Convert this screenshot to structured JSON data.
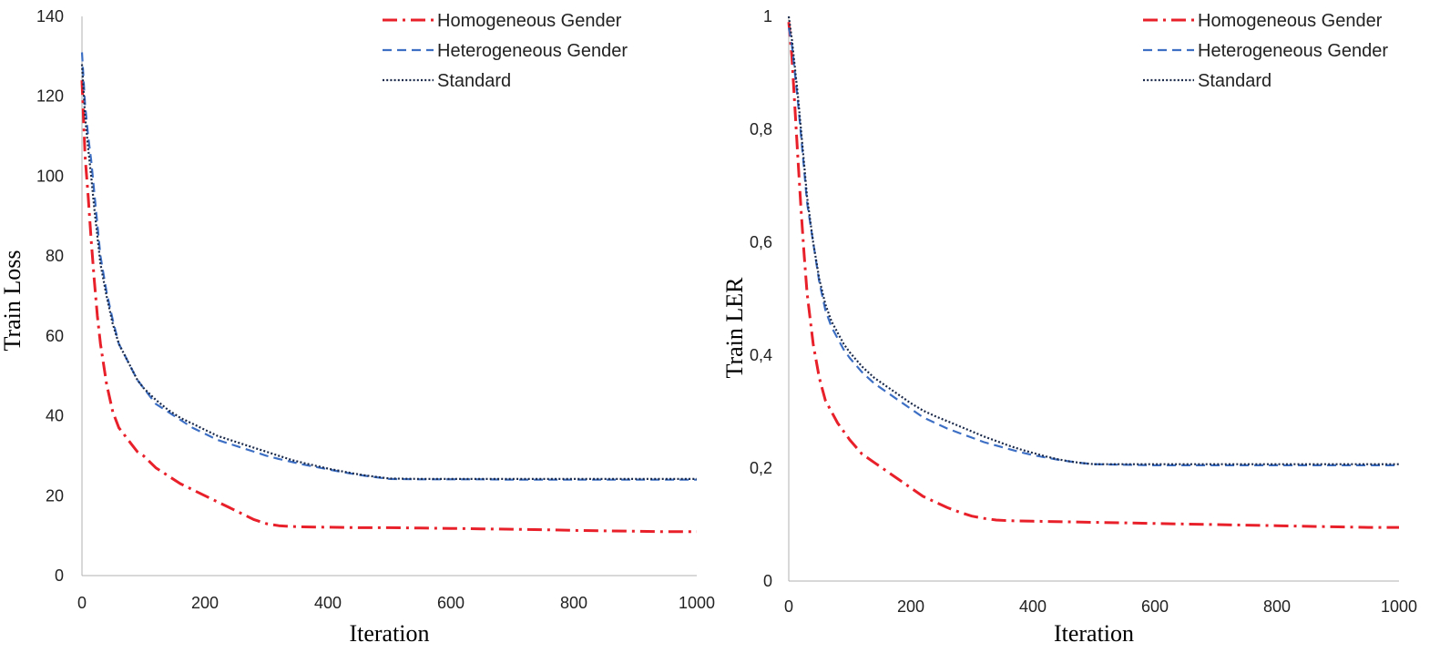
{
  "chart_data": [
    {
      "type": "line",
      "xlabel": "Iteration",
      "ylabel": "Train Loss",
      "xlim": [
        0,
        1000
      ],
      "ylim": [
        0,
        140
      ],
      "xticks": [
        "0",
        "200",
        "400",
        "600",
        "800",
        "1000"
      ],
      "yticks": [
        "0",
        "20",
        "40",
        "60",
        "80",
        "100",
        "120",
        "140"
      ],
      "grid": false,
      "legend_position": "top-right",
      "series": [
        {
          "name": "Homogeneous Gender",
          "color": "#e8202a",
          "style": "dashdot",
          "x": [
            0,
            5,
            10,
            15,
            20,
            25,
            30,
            40,
            50,
            60,
            70,
            80,
            90,
            100,
            120,
            140,
            160,
            180,
            200,
            220,
            240,
            260,
            280,
            300,
            320,
            340,
            360,
            400,
            450,
            500,
            550,
            600,
            650,
            700,
            750,
            800,
            850,
            900,
            950,
            1000
          ],
          "y": [
            124,
            105,
            95,
            84,
            74,
            65,
            58,
            48,
            41,
            37,
            35,
            33,
            31,
            30,
            27,
            25,
            23,
            21.5,
            20,
            18.5,
            17,
            15.5,
            14,
            13,
            12.5,
            12.3,
            12.2,
            12.1,
            12.0,
            12.0,
            11.9,
            11.8,
            11.7,
            11.6,
            11.5,
            11.3,
            11.2,
            11.1,
            11.0,
            11.0
          ]
        },
        {
          "name": "Heterogeneous Gender",
          "color": "#3d6fc4",
          "style": "dashed",
          "x": [
            0,
            5,
            10,
            15,
            20,
            25,
            30,
            40,
            50,
            60,
            70,
            80,
            90,
            100,
            120,
            140,
            160,
            180,
            200,
            220,
            240,
            260,
            280,
            300,
            320,
            340,
            360,
            380,
            400,
            420,
            440,
            460,
            480,
            500,
            550,
            600,
            650,
            700,
            750,
            800,
            850,
            900,
            950,
            1000
          ],
          "y": [
            131,
            118,
            110,
            104,
            96,
            88,
            80,
            71,
            64,
            58,
            55,
            52,
            49,
            47,
            43,
            41,
            39,
            37,
            35.5,
            34,
            33,
            32,
            31,
            30,
            29.2,
            28.5,
            27.8,
            27.2,
            26.6,
            26.0,
            25.5,
            25.0,
            24.6,
            24.2,
            24.1,
            24.1,
            24.1,
            24.0,
            24.0,
            24.0,
            24.0,
            24.0,
            24.0,
            24.0
          ]
        },
        {
          "name": "Standard",
          "color": "#1b2a4a",
          "style": "dotted",
          "x": [
            0,
            5,
            10,
            15,
            20,
            25,
            30,
            40,
            50,
            60,
            70,
            80,
            90,
            100,
            120,
            140,
            160,
            180,
            200,
            220,
            240,
            260,
            280,
            300,
            320,
            340,
            360,
            380,
            400,
            420,
            440,
            460,
            480,
            500,
            550,
            600,
            650,
            700,
            750,
            800,
            850,
            900,
            950,
            1000
          ],
          "y": [
            128,
            115,
            107,
            100,
            92,
            85,
            78,
            70,
            63,
            58,
            55,
            52,
            49,
            47,
            44,
            41.5,
            39.5,
            38,
            36.5,
            35,
            34,
            33,
            32,
            31,
            30,
            29,
            28.2,
            27.5,
            26.8,
            26.2,
            25.6,
            25.1,
            24.7,
            24.3,
            24.2,
            24.2,
            24.2,
            24.2,
            24.2,
            24.2,
            24.2,
            24.2,
            24.2,
            24.2
          ]
        }
      ]
    },
    {
      "type": "line",
      "xlabel": "Iteration",
      "ylabel": "Train LER",
      "xlim": [
        0,
        1000
      ],
      "ylim": [
        0,
        1
      ],
      "xticks": [
        "0",
        "200",
        "400",
        "600",
        "800",
        "1000"
      ],
      "yticks": [
        "0",
        "0,2",
        "0,4",
        "0,6",
        "0,8",
        "1"
      ],
      "grid": false,
      "legend_position": "top-right",
      "series": [
        {
          "name": "Homogeneous Gender",
          "color": "#e8202a",
          "style": "dashdot",
          "x": [
            0,
            5,
            10,
            15,
            20,
            25,
            30,
            40,
            50,
            60,
            70,
            80,
            90,
            100,
            120,
            140,
            160,
            180,
            200,
            220,
            240,
            260,
            280,
            300,
            320,
            340,
            360,
            400,
            450,
            500,
            550,
            600,
            650,
            700,
            750,
            800,
            850,
            900,
            950,
            1000
          ],
          "y": [
            0.99,
            0.93,
            0.84,
            0.75,
            0.66,
            0.58,
            0.51,
            0.42,
            0.36,
            0.32,
            0.3,
            0.28,
            0.265,
            0.25,
            0.225,
            0.21,
            0.195,
            0.18,
            0.165,
            0.15,
            0.14,
            0.13,
            0.122,
            0.115,
            0.111,
            0.108,
            0.107,
            0.106,
            0.105,
            0.104,
            0.103,
            0.102,
            0.101,
            0.1,
            0.099,
            0.098,
            0.097,
            0.096,
            0.095,
            0.095
          ]
        },
        {
          "name": "Heterogeneous Gender",
          "color": "#3d6fc4",
          "style": "dashed",
          "x": [
            0,
            5,
            10,
            15,
            20,
            25,
            30,
            40,
            50,
            60,
            70,
            80,
            90,
            100,
            120,
            140,
            160,
            180,
            200,
            220,
            240,
            260,
            280,
            300,
            320,
            340,
            360,
            380,
            400,
            420,
            440,
            460,
            480,
            500,
            550,
            600,
            650,
            700,
            750,
            800,
            850,
            900,
            950,
            1000
          ],
          "y": [
            0.98,
            0.95,
            0.9,
            0.85,
            0.79,
            0.73,
            0.67,
            0.6,
            0.53,
            0.48,
            0.45,
            0.43,
            0.41,
            0.395,
            0.37,
            0.35,
            0.335,
            0.32,
            0.305,
            0.29,
            0.28,
            0.27,
            0.262,
            0.254,
            0.246,
            0.24,
            0.234,
            0.228,
            0.223,
            0.219,
            0.215,
            0.212,
            0.209,
            0.207,
            0.206,
            0.205,
            0.205,
            0.205,
            0.205,
            0.205,
            0.205,
            0.205,
            0.205,
            0.205
          ]
        },
        {
          "name": "Standard",
          "color": "#1b2a4a",
          "style": "dotted",
          "x": [
            0,
            5,
            10,
            15,
            20,
            25,
            30,
            40,
            50,
            60,
            70,
            80,
            90,
            100,
            120,
            140,
            160,
            180,
            200,
            220,
            240,
            260,
            280,
            300,
            320,
            340,
            360,
            380,
            400,
            420,
            440,
            460,
            480,
            500,
            550,
            600,
            650,
            700,
            750,
            800,
            850,
            900,
            950,
            1000
          ],
          "y": [
            1.0,
            0.96,
            0.91,
            0.86,
            0.8,
            0.74,
            0.68,
            0.6,
            0.535,
            0.49,
            0.46,
            0.44,
            0.42,
            0.405,
            0.38,
            0.36,
            0.345,
            0.33,
            0.315,
            0.302,
            0.292,
            0.283,
            0.274,
            0.265,
            0.256,
            0.248,
            0.24,
            0.233,
            0.227,
            0.221,
            0.216,
            0.212,
            0.209,
            0.207,
            0.207,
            0.207,
            0.207,
            0.207,
            0.207,
            0.207,
            0.207,
            0.207,
            0.207,
            0.207
          ]
        }
      ]
    }
  ]
}
